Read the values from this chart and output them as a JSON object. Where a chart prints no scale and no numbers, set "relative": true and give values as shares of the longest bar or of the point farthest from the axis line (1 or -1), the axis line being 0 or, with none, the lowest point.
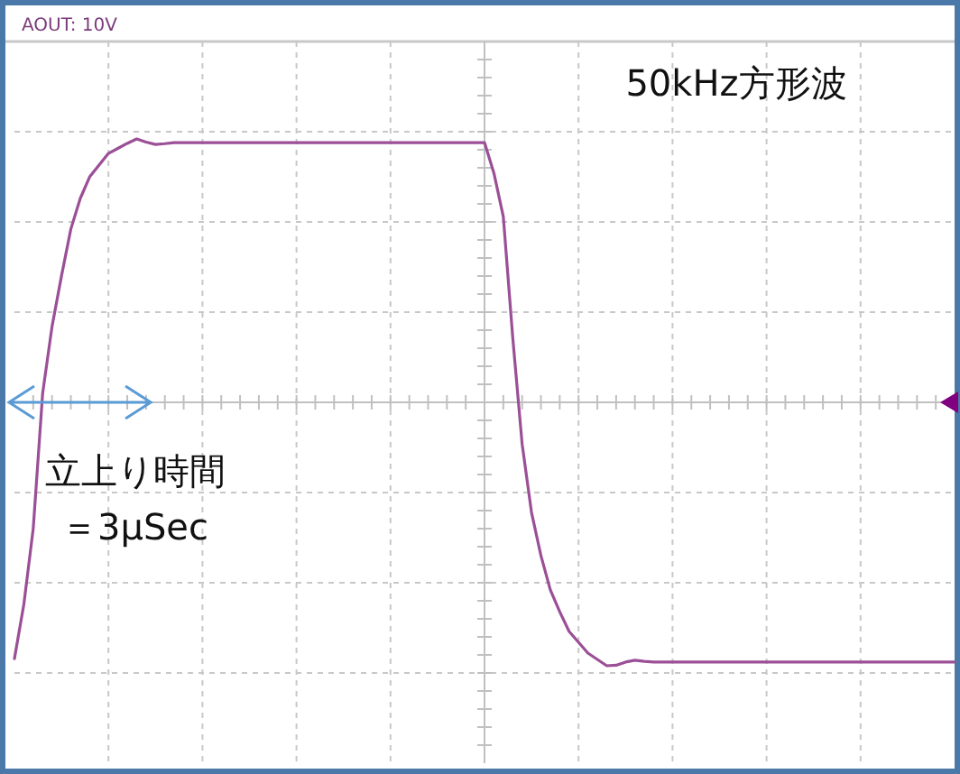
{
  "chart_data": {
    "type": "line",
    "title": "50kHz方形波",
    "relative": true,
    "grid": true,
    "color": "#9b4f96",
    "annotations": [
      "AOUT: 10V",
      "立上り時間",
      "＝3μSec"
    ],
    "categories": [
      null,
      null,
      null,
      null,
      null,
      null,
      null,
      null,
      null,
      null,
      null,
      null,
      null,
      null,
      null,
      null,
      null,
      null,
      null,
      null,
      null,
      null,
      null,
      null,
      null,
      null,
      null,
      null,
      null,
      null,
      null,
      null,
      null,
      null,
      null,
      null,
      null,
      null,
      null,
      null,
      null,
      null,
      null,
      null,
      null,
      null,
      null,
      null,
      null,
      null,
      null,
      null,
      null,
      null,
      null,
      null,
      null,
      null,
      null,
      null,
      null,
      null,
      null,
      null,
      null,
      null,
      null,
      null,
      null,
      null,
      null,
      null,
      null,
      null,
      null,
      null,
      null,
      null,
      null,
      null,
      null,
      null,
      null,
      null,
      null,
      null,
      null,
      null,
      null,
      null,
      null,
      null,
      null,
      null,
      null,
      null,
      null,
      null,
      null,
      null,
      null
    ],
    "values": [
      -0.973,
      -0.767,
      -0.479,
      0.034,
      0.288,
      0.479,
      0.658,
      0.774,
      0.856,
      0.901,
      0.945,
      0.964,
      0.983,
      1,
      0.988,
      0.979,
      0.982,
      0.986,
      0.986,
      0.986,
      0.986,
      0.986,
      0.986,
      0.986,
      0.986,
      0.986,
      0.986,
      0.986,
      0.986,
      0.986,
      0.986,
      0.986,
      0.986,
      0.986,
      0.986,
      0.986,
      0.986,
      0.986,
      0.986,
      0.986,
      0.986,
      0.986,
      0.986,
      0.986,
      0.986,
      0.986,
      0.986,
      0.986,
      0.986,
      0.986,
      0.986,
      0.87,
      0.705,
      0.247,
      -0.158,
      -0.418,
      -0.582,
      -0.712,
      -0.795,
      -0.87,
      -0.911,
      -0.952,
      -0.976,
      -1,
      -0.998,
      -0.986,
      -0.979,
      -0.983,
      -0.986,
      -0.986,
      -0.986,
      -0.986,
      -0.986,
      -0.986,
      -0.986,
      -0.986,
      -0.986,
      -0.986,
      -0.986,
      -0.986,
      -0.986,
      -0.986,
      -0.986,
      -0.986,
      -0.986,
      -0.986,
      -0.986,
      -0.986,
      -0.986,
      -0.986,
      -0.986,
      -0.986,
      -0.986,
      -0.986,
      -0.986,
      -0.986,
      -0.986,
      -0.986,
      -0.986,
      -0.986,
      -0.986
    ]
  }
}
